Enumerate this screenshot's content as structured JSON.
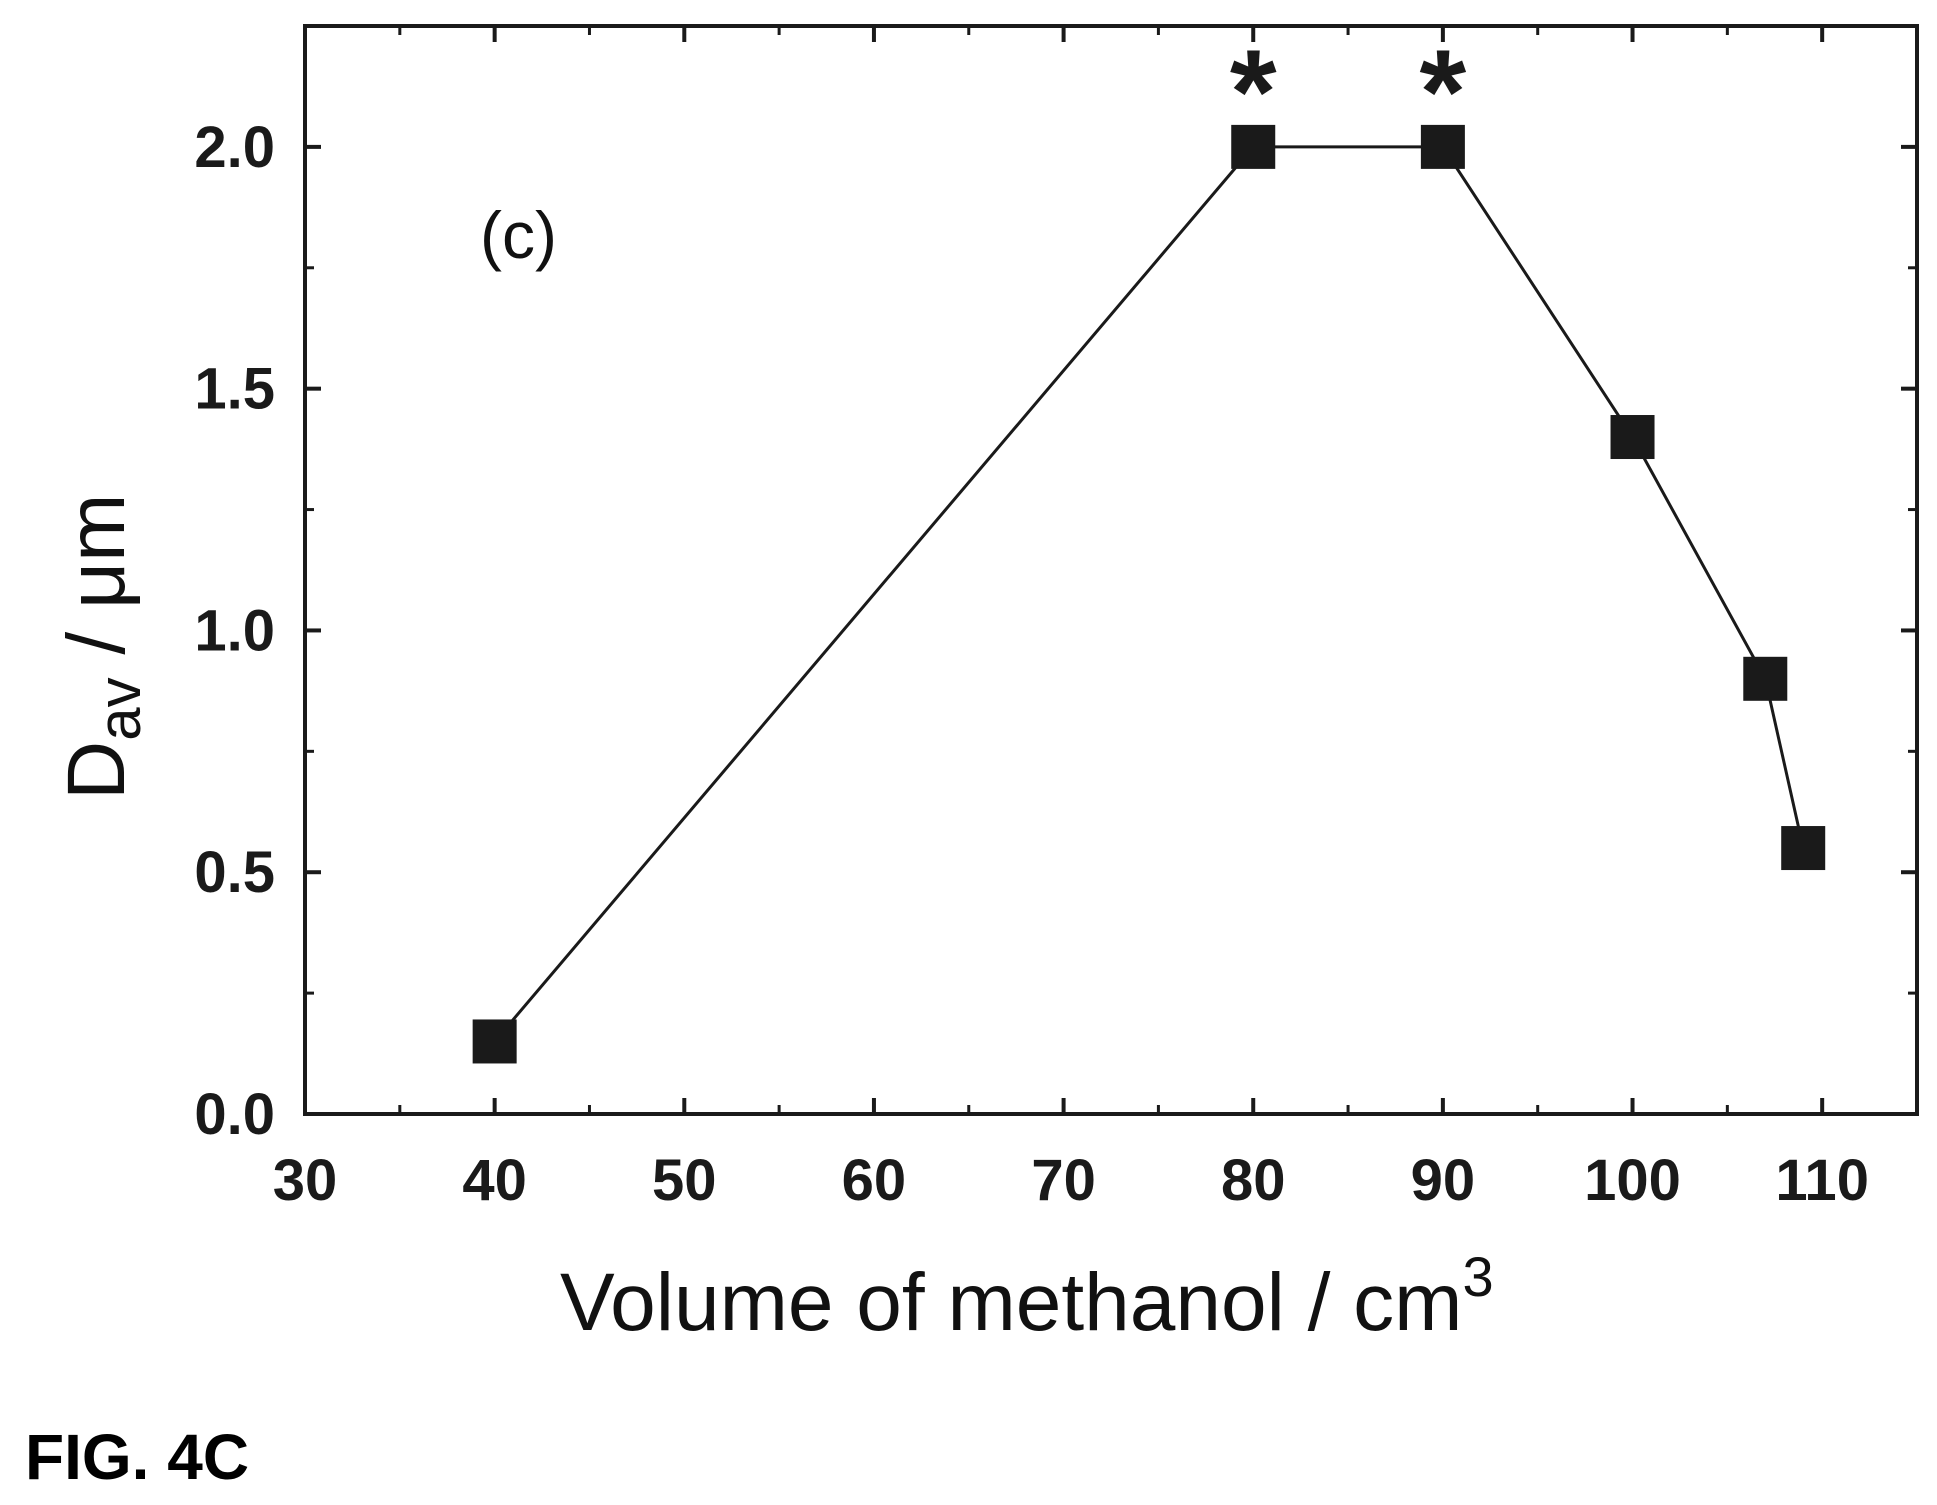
{
  "figure": {
    "caption": "FIG. 4C",
    "panel_label": "(c)"
  },
  "chart_data": {
    "type": "line",
    "xlabel": "Volume of methanol / cm",
    "xlabel_superscript": "3",
    "ylabel_main": "D",
    "ylabel_subscript": "av",
    "ylabel_rest": " / μm",
    "xlim": [
      30,
      115
    ],
    "ylim": [
      0,
      2.25
    ],
    "x_ticks": [
      30,
      40,
      50,
      60,
      70,
      80,
      90,
      100,
      110
    ],
    "x_tick_labels": [
      "30",
      "40",
      "50",
      "60",
      "70",
      "80",
      "90",
      "100",
      "110"
    ],
    "y_ticks": [
      0,
      0.5,
      1.0,
      1.5,
      2.0
    ],
    "y_tick_labels": [
      "0.0",
      "0.5",
      "1.0",
      "1.5",
      "2.0"
    ],
    "grid": false,
    "marker": "square",
    "color": "#1a1a1a",
    "series": [
      {
        "x": [
          40,
          80,
          90,
          100,
          107,
          109
        ],
        "y": [
          0.15,
          2.0,
          2.0,
          1.4,
          0.9,
          0.55
        ]
      }
    ],
    "annotations": [
      {
        "text": "*",
        "x": 80,
        "y": 2.0
      },
      {
        "text": "*",
        "x": 90,
        "y": 2.0
      }
    ]
  }
}
